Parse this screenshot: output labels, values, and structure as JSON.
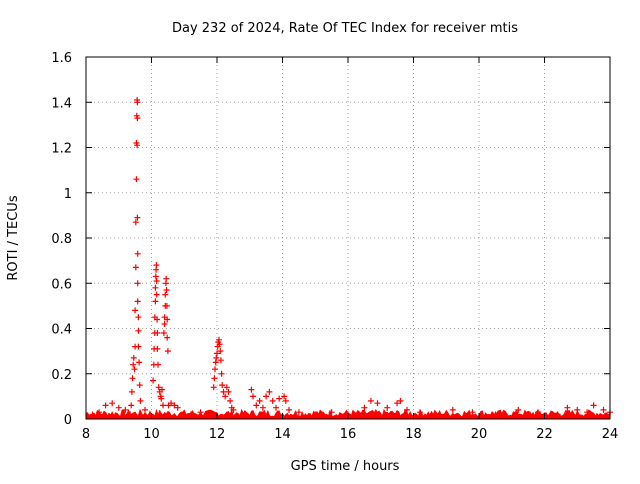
{
  "chart_data": {
    "type": "scatter",
    "title": "Day 232 of 2024, Rate Of TEC Index for receiver mtis",
    "xlabel": "GPS time / hours",
    "ylabel": "ROTI / TECUs",
    "xlim": [
      8,
      24
    ],
    "ylim": [
      0,
      1.6
    ],
    "xticks": [
      "8",
      "10",
      "12",
      "14",
      "16",
      "18",
      "20",
      "22",
      "24"
    ],
    "yticks": [
      "0",
      "0.2",
      "0.4",
      "0.6",
      "0.8",
      "1",
      "1.2",
      "1.4",
      "1.6"
    ],
    "grid": true,
    "marker": "+",
    "color": "#ff0000",
    "series": [
      {
        "name": "ROTI",
        "points": [
          [
            9.35,
            0.02
          ],
          [
            9.38,
            0.06
          ],
          [
            9.4,
            0.12
          ],
          [
            9.42,
            0.18
          ],
          [
            9.44,
            0.24
          ],
          [
            9.46,
            0.27
          ],
          [
            9.48,
            0.22
          ],
          [
            9.5,
            0.32
          ],
          [
            9.5,
            0.48
          ],
          [
            9.52,
            0.67
          ],
          [
            9.52,
            0.87
          ],
          [
            9.54,
            1.06
          ],
          [
            9.54,
            1.22
          ],
          [
            9.55,
            1.34
          ],
          [
            9.56,
            1.41
          ],
          [
            9.57,
            1.4
          ],
          [
            9.57,
            1.33
          ],
          [
            9.56,
            1.21
          ],
          [
            9.57,
            0.89
          ],
          [
            9.58,
            0.73
          ],
          [
            9.58,
            0.6
          ],
          [
            9.58,
            0.52
          ],
          [
            9.6,
            0.45
          ],
          [
            9.6,
            0.39
          ],
          [
            9.6,
            0.32
          ],
          [
            9.62,
            0.25
          ],
          [
            9.64,
            0.15
          ],
          [
            9.66,
            0.08
          ],
          [
            10.05,
            0.17
          ],
          [
            10.07,
            0.24
          ],
          [
            10.08,
            0.31
          ],
          [
            10.1,
            0.38
          ],
          [
            10.1,
            0.45
          ],
          [
            10.12,
            0.52
          ],
          [
            10.12,
            0.58
          ],
          [
            10.13,
            0.63
          ],
          [
            10.14,
            0.66
          ],
          [
            10.15,
            0.68
          ],
          [
            10.16,
            0.61
          ],
          [
            10.16,
            0.55
          ],
          [
            10.17,
            0.44
          ],
          [
            10.18,
            0.38
          ],
          [
            10.18,
            0.31
          ],
          [
            10.2,
            0.24
          ],
          [
            10.22,
            0.14
          ],
          [
            10.25,
            0.12
          ],
          [
            10.28,
            0.1
          ],
          [
            10.3,
            0.09
          ],
          [
            10.32,
            0.13
          ],
          [
            10.35,
            0.06
          ],
          [
            10.38,
            0.38
          ],
          [
            10.4,
            0.42
          ],
          [
            10.4,
            0.45
          ],
          [
            10.42,
            0.5
          ],
          [
            10.42,
            0.55
          ],
          [
            10.44,
            0.6
          ],
          [
            10.45,
            0.62
          ],
          [
            10.46,
            0.57
          ],
          [
            10.47,
            0.5
          ],
          [
            10.48,
            0.44
          ],
          [
            10.48,
            0.36
          ],
          [
            10.5,
            0.3
          ],
          [
            10.52,
            0.06
          ],
          [
            10.6,
            0.07
          ],
          [
            10.7,
            0.06
          ],
          [
            11.9,
            0.14
          ],
          [
            11.92,
            0.18
          ],
          [
            11.94,
            0.22
          ],
          [
            11.96,
            0.25
          ],
          [
            11.98,
            0.27
          ],
          [
            12.0,
            0.29
          ],
          [
            12.02,
            0.32
          ],
          [
            12.04,
            0.34
          ],
          [
            12.06,
            0.35
          ],
          [
            12.08,
            0.33
          ],
          [
            12.1,
            0.3
          ],
          [
            12.12,
            0.26
          ],
          [
            12.14,
            0.2
          ],
          [
            12.16,
            0.15
          ],
          [
            12.2,
            0.12
          ],
          [
            12.25,
            0.1
          ],
          [
            12.3,
            0.14
          ],
          [
            12.35,
            0.12
          ],
          [
            12.4,
            0.08
          ],
          [
            12.45,
            0.05
          ],
          [
            12.5,
            0.04
          ],
          [
            13.05,
            0.13
          ],
          [
            13.1,
            0.1
          ],
          [
            13.2,
            0.06
          ],
          [
            13.3,
            0.08
          ],
          [
            13.4,
            0.05
          ],
          [
            13.5,
            0.1
          ],
          [
            13.6,
            0.12
          ],
          [
            13.7,
            0.08
          ],
          [
            13.8,
            0.05
          ],
          [
            13.9,
            0.09
          ],
          [
            14.05,
            0.1
          ],
          [
            14.1,
            0.08
          ],
          [
            14.2,
            0.04
          ],
          [
            8.2,
            0.02
          ],
          [
            8.4,
            0.03
          ],
          [
            8.6,
            0.06
          ],
          [
            8.8,
            0.07
          ],
          [
            9.0,
            0.05
          ],
          [
            9.2,
            0.04
          ],
          [
            9.8,
            0.04
          ],
          [
            10.8,
            0.05
          ],
          [
            11.2,
            0.02
          ],
          [
            11.5,
            0.03
          ],
          [
            14.5,
            0.03
          ],
          [
            15.0,
            0.02
          ],
          [
            15.5,
            0.03
          ],
          [
            16.0,
            0.02
          ],
          [
            16.5,
            0.05
          ],
          [
            16.7,
            0.08
          ],
          [
            16.9,
            0.07
          ],
          [
            17.2,
            0.05
          ],
          [
            17.5,
            0.07
          ],
          [
            17.6,
            0.08
          ],
          [
            17.8,
            0.04
          ],
          [
            18.2,
            0.03
          ],
          [
            18.8,
            0.02
          ],
          [
            19.2,
            0.04
          ],
          [
            19.8,
            0.03
          ],
          [
            20.5,
            0.02
          ],
          [
            21.2,
            0.04
          ],
          [
            21.8,
            0.03
          ],
          [
            22.4,
            0.02
          ],
          [
            22.7,
            0.05
          ],
          [
            23.0,
            0.04
          ],
          [
            23.3,
            0.03
          ],
          [
            23.5,
            0.06
          ],
          [
            23.8,
            0.04
          ],
          [
            24.0,
            0.03
          ]
        ]
      }
    ]
  }
}
